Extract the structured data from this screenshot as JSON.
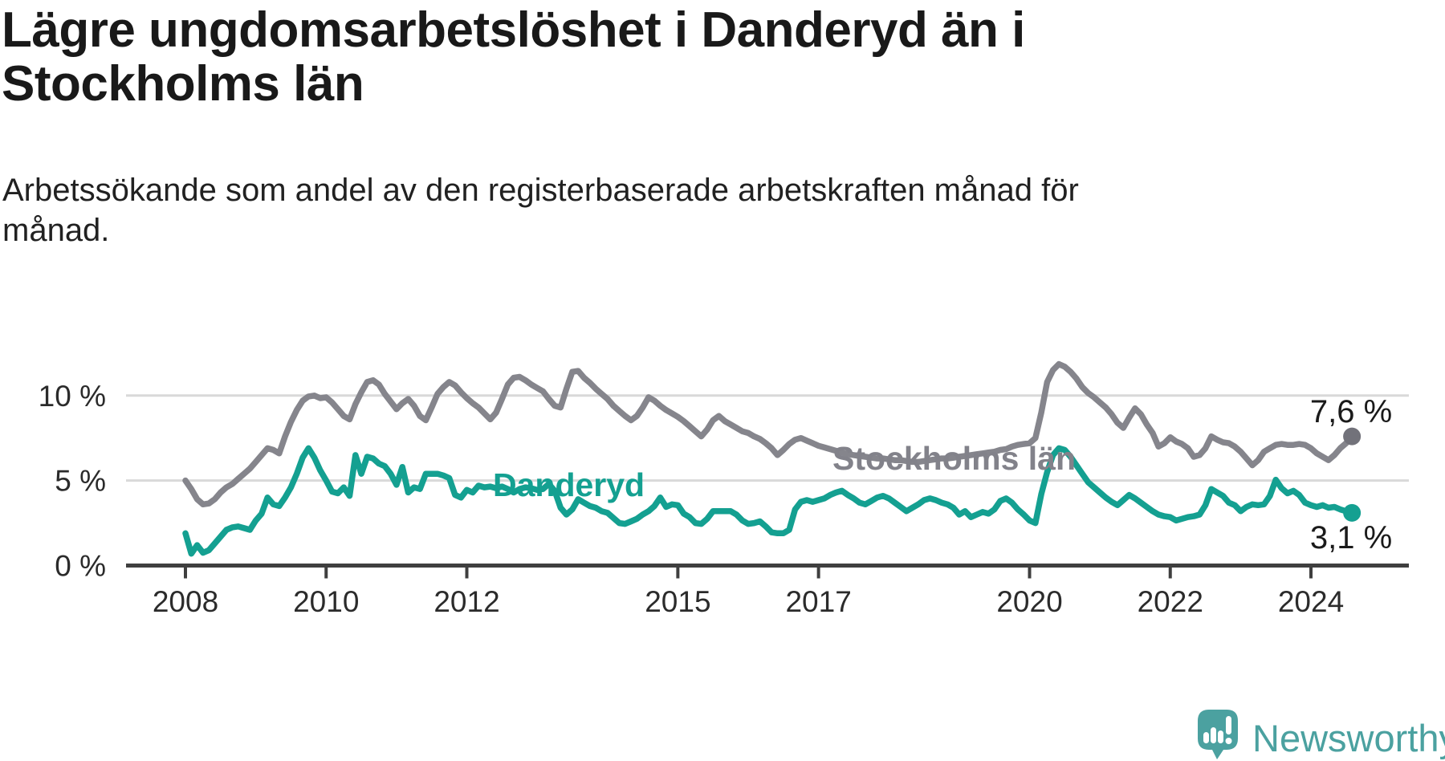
{
  "header": {
    "title": "Lägre ungdomsarbetslöshet i Danderyd än i Stockholms län",
    "subtitle": "Arbetssökande som andel av den registerbaserade arbetskraften månad för månad."
  },
  "footer": {
    "brand": "Newsworthy",
    "logo_icon": "bar-chart-speech-bubble-icon"
  },
  "colors": {
    "accent_teal": "#14A091",
    "line_gray": "#85858C",
    "gray_dot": "#72727A",
    "brand_teal": "#4BA1A0",
    "gridline": "#D9D9D9",
    "axis": "#3F3F3F",
    "text_dark": "#191919",
    "axis_text": "#2B2B2B"
  },
  "chart_data": {
    "type": "line",
    "title": "Lägre ungdomsarbetslöshet i Danderyd än i Stockholms län",
    "subtitle": "Arbetssökande som andel av den registerbaserade arbetskraften månad för månad.",
    "frequency": "monthly",
    "x_start": "2008-01",
    "x_end": "2024-08",
    "y_unit": "%",
    "ylim": [
      0,
      12.5
    ],
    "grid": "horizontal",
    "legend": "inline-labels",
    "y_ticks": [
      {
        "value": 0,
        "label": "0 %"
      },
      {
        "value": 5,
        "label": "5 %"
      },
      {
        "value": 10,
        "label": "10 %"
      }
    ],
    "x_ticks": [
      {
        "year": 2008,
        "label": "2008"
      },
      {
        "year": 2010,
        "label": "2010"
      },
      {
        "year": 2012,
        "label": "2012"
      },
      {
        "year": 2015,
        "label": "2015"
      },
      {
        "year": 2017,
        "label": "2017"
      },
      {
        "year": 2020,
        "label": "2020"
      },
      {
        "year": 2022,
        "label": "2022"
      },
      {
        "year": 2024,
        "label": "2024"
      }
    ],
    "series": [
      {
        "name": "Stockholms län",
        "color": "#85858C",
        "dot_color": "#72727A",
        "end_label": "7,6 %",
        "end_value": 7.6,
        "values": [
          5.0,
          4.5,
          3.9,
          3.6,
          3.65,
          3.9,
          4.3,
          4.6,
          4.8,
          5.1,
          5.4,
          5.7,
          6.1,
          6.5,
          6.9,
          6.8,
          6.6,
          7.6,
          8.45,
          9.15,
          9.7,
          9.95,
          10.0,
          9.85,
          9.9,
          9.6,
          9.2,
          8.8,
          8.6,
          9.5,
          10.2,
          10.8,
          10.9,
          10.65,
          10.1,
          9.65,
          9.2,
          9.55,
          9.8,
          9.4,
          8.8,
          8.55,
          9.3,
          10.1,
          10.5,
          10.8,
          10.6,
          10.2,
          9.85,
          9.55,
          9.3,
          8.95,
          8.6,
          9.0,
          9.8,
          10.65,
          11.05,
          11.1,
          10.9,
          10.65,
          10.45,
          10.25,
          9.8,
          9.4,
          9.3,
          10.4,
          11.4,
          11.45,
          11.05,
          10.75,
          10.4,
          10.1,
          9.8,
          9.4,
          9.1,
          8.8,
          8.55,
          8.8,
          9.3,
          9.9,
          9.7,
          9.4,
          9.15,
          8.95,
          8.75,
          8.5,
          8.2,
          7.9,
          7.6,
          8.0,
          8.55,
          8.8,
          8.5,
          8.3,
          8.1,
          7.9,
          7.8,
          7.6,
          7.45,
          7.2,
          6.9,
          6.5,
          6.8,
          7.15,
          7.4,
          7.5,
          7.35,
          7.2,
          7.05,
          6.95,
          6.85,
          6.75,
          6.65,
          6.55,
          6.5,
          6.45,
          6.4,
          6.35,
          6.3,
          6.3,
          6.25,
          6.2,
          6.2,
          6.15,
          6.1,
          6.1,
          6.15,
          6.2,
          6.25,
          6.3,
          6.3,
          6.35,
          6.4,
          6.45,
          6.5,
          6.55,
          6.6,
          6.65,
          6.7,
          6.8,
          6.85,
          7.0,
          7.1,
          7.15,
          7.2,
          7.5,
          9.0,
          10.8,
          11.5,
          11.85,
          11.7,
          11.4,
          11.0,
          10.5,
          10.15,
          9.9,
          9.6,
          9.3,
          8.9,
          8.4,
          8.1,
          8.7,
          9.25,
          8.9,
          8.3,
          7.8,
          7.0,
          7.2,
          7.55,
          7.3,
          7.15,
          6.9,
          6.4,
          6.5,
          6.9,
          7.6,
          7.4,
          7.25,
          7.2,
          7.0,
          6.7,
          6.3,
          5.9,
          6.2,
          6.7,
          6.9,
          7.1,
          7.15,
          7.1,
          7.1,
          7.15,
          7.1,
          6.9,
          6.6,
          6.4,
          6.2,
          6.5,
          6.9,
          7.2,
          7.6
        ]
      },
      {
        "name": "Danderyd",
        "color": "#14A091",
        "dot_color": "#14A091",
        "end_label": "3,1 %",
        "end_value": 3.1,
        "values": [
          1.9,
          0.7,
          1.2,
          0.75,
          0.9,
          1.3,
          1.7,
          2.1,
          2.25,
          2.3,
          2.2,
          2.1,
          2.65,
          3.05,
          4.0,
          3.6,
          3.5,
          4.0,
          4.6,
          5.4,
          6.35,
          6.9,
          6.35,
          5.6,
          5.0,
          4.35,
          4.25,
          4.6,
          4.1,
          6.5,
          5.4,
          6.4,
          6.3,
          6.0,
          5.85,
          5.4,
          4.75,
          5.8,
          4.3,
          4.6,
          4.5,
          5.4,
          5.4,
          5.4,
          5.3,
          5.15,
          4.15,
          4.0,
          4.45,
          4.3,
          4.7,
          4.6,
          4.65,
          4.55,
          4.65,
          4.5,
          4.3,
          4.5,
          4.6,
          4.55,
          4.45,
          4.5,
          4.8,
          4.4,
          3.4,
          3.0,
          3.3,
          3.9,
          3.7,
          3.5,
          3.4,
          3.2,
          3.1,
          2.8,
          2.5,
          2.45,
          2.6,
          2.75,
          3.0,
          3.2,
          3.5,
          4.0,
          3.45,
          3.6,
          3.55,
          3.05,
          2.85,
          2.5,
          2.45,
          2.75,
          3.2,
          3.2,
          3.2,
          3.2,
          3.0,
          2.65,
          2.45,
          2.5,
          2.6,
          2.3,
          1.95,
          1.9,
          1.9,
          2.1,
          3.3,
          3.75,
          3.85,
          3.75,
          3.85,
          3.95,
          4.15,
          4.3,
          4.4,
          4.15,
          3.95,
          3.7,
          3.6,
          3.8,
          4.0,
          4.1,
          3.95,
          3.7,
          3.45,
          3.2,
          3.4,
          3.6,
          3.85,
          3.95,
          3.85,
          3.7,
          3.6,
          3.4,
          3.0,
          3.2,
          2.85,
          3.0,
          3.15,
          3.05,
          3.3,
          3.8,
          3.95,
          3.7,
          3.3,
          3.0,
          2.65,
          2.5,
          4.2,
          5.5,
          6.5,
          6.9,
          6.8,
          6.4,
          5.9,
          5.4,
          4.9,
          4.6,
          4.3,
          4.0,
          3.75,
          3.55,
          3.85,
          4.15,
          3.95,
          3.7,
          3.45,
          3.2,
          3.0,
          2.9,
          2.85,
          2.65,
          2.75,
          2.85,
          2.9,
          3.0,
          3.55,
          4.5,
          4.3,
          4.1,
          3.7,
          3.55,
          3.2,
          3.45,
          3.6,
          3.55,
          3.6,
          4.1,
          5.05,
          4.55,
          4.25,
          4.4,
          4.15,
          3.7,
          3.55,
          3.45,
          3.55,
          3.4,
          3.45,
          3.3,
          3.2,
          3.1
        ]
      }
    ]
  }
}
